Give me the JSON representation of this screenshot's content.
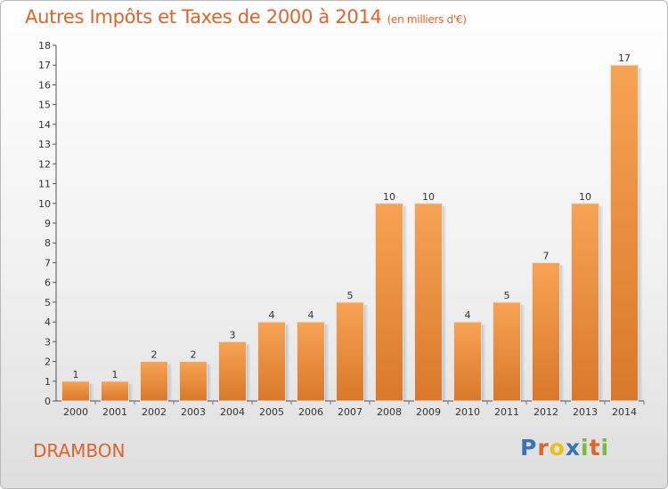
{
  "header": {
    "title": "Autres Impôts et Taxes de 2000 à 2014",
    "subtitle": "(en milliers d'€)"
  },
  "footer": {
    "commune": "DRAMBON",
    "logo_text": "Proxiti"
  },
  "colors": {
    "title": "#e0632a",
    "bar_top": "#f7a354",
    "bar_bottom": "#d9782a"
  },
  "chart_data": {
    "type": "bar",
    "title": "Autres Impôts et Taxes de 2000 à 2014",
    "subtitle": "(en milliers d'€)",
    "xlabel": "",
    "ylabel": "",
    "ylim": [
      0,
      18
    ],
    "yticks": [
      0,
      1,
      2,
      3,
      4,
      5,
      6,
      7,
      8,
      9,
      10,
      11,
      12,
      13,
      14,
      15,
      16,
      17,
      18
    ],
    "categories": [
      "2000",
      "2001",
      "2002",
      "2003",
      "2004",
      "2005",
      "2006",
      "2007",
      "2008",
      "2009",
      "2010",
      "2011",
      "2012",
      "2013",
      "2014"
    ],
    "values": [
      1,
      1,
      2,
      2,
      3,
      4,
      4,
      5,
      10,
      10,
      4,
      5,
      7,
      10,
      17
    ],
    "data_labels": true,
    "grid": false
  }
}
